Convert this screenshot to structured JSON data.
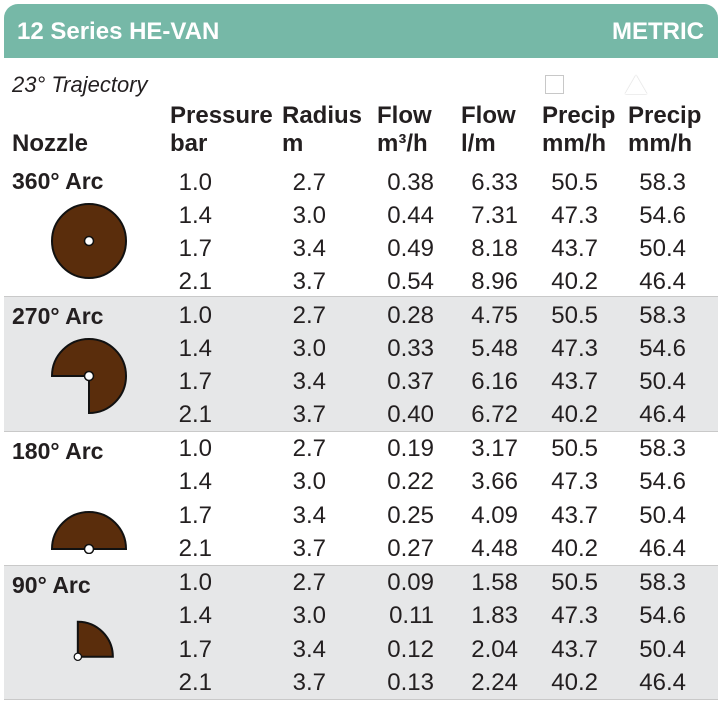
{
  "header": {
    "title": "12 Series HE-VAN",
    "units": "METRIC"
  },
  "trajectory": "23° Trajectory",
  "columns": {
    "nozzle": "Nozzle",
    "pressure": [
      "Pressure",
      "bar"
    ],
    "radius": [
      "Radius",
      "m"
    ],
    "flow_m3": [
      "Flow",
      "m³/h"
    ],
    "flow_lm": [
      "Flow",
      "l/m"
    ],
    "precip_square": [
      "Precip",
      "mm/h"
    ],
    "precip_triangle": [
      "Precip",
      "mm/h"
    ]
  },
  "legend_icons": {
    "square": "square-icon",
    "triangle": "triangle-icon"
  },
  "colors": {
    "header": "#76b8a7",
    "nozzle_fill": "#5a2d0c",
    "shade": "#e6e7e8"
  },
  "groups": [
    {
      "arc": "360° Arc",
      "degrees": 360,
      "rows": [
        {
          "pressure": "1.0",
          "radius": "2.7",
          "flow_m3": "0.38",
          "flow_lm": "6.33",
          "precip_sq": "50.5",
          "precip_tri": "58.3"
        },
        {
          "pressure": "1.4",
          "radius": "3.0",
          "flow_m3": "0.44",
          "flow_lm": "7.31",
          "precip_sq": "47.3",
          "precip_tri": "54.6"
        },
        {
          "pressure": "1.7",
          "radius": "3.4",
          "flow_m3": "0.49",
          "flow_lm": "8.18",
          "precip_sq": "43.7",
          "precip_tri": "50.4"
        },
        {
          "pressure": "2.1",
          "radius": "3.7",
          "flow_m3": "0.54",
          "flow_lm": "8.96",
          "precip_sq": "40.2",
          "precip_tri": "46.4"
        }
      ]
    },
    {
      "arc": "270° Arc",
      "degrees": 270,
      "rows": [
        {
          "pressure": "1.0",
          "radius": "2.7",
          "flow_m3": "0.28",
          "flow_lm": "4.75",
          "precip_sq": "50.5",
          "precip_tri": "58.3"
        },
        {
          "pressure": "1.4",
          "radius": "3.0",
          "flow_m3": "0.33",
          "flow_lm": "5.48",
          "precip_sq": "47.3",
          "precip_tri": "54.6"
        },
        {
          "pressure": "1.7",
          "radius": "3.4",
          "flow_m3": "0.37",
          "flow_lm": "6.16",
          "precip_sq": "43.7",
          "precip_tri": "50.4"
        },
        {
          "pressure": "2.1",
          "radius": "3.7",
          "flow_m3": "0.40",
          "flow_lm": "6.72",
          "precip_sq": "40.2",
          "precip_tri": "46.4"
        }
      ]
    },
    {
      "arc": "180° Arc",
      "degrees": 180,
      "rows": [
        {
          "pressure": "1.0",
          "radius": "2.7",
          "flow_m3": "0.19",
          "flow_lm": "3.17",
          "precip_sq": "50.5",
          "precip_tri": "58.3"
        },
        {
          "pressure": "1.4",
          "radius": "3.0",
          "flow_m3": "0.22",
          "flow_lm": "3.66",
          "precip_sq": "47.3",
          "precip_tri": "54.6"
        },
        {
          "pressure": "1.7",
          "radius": "3.4",
          "flow_m3": "0.25",
          "flow_lm": "4.09",
          "precip_sq": "43.7",
          "precip_tri": "50.4"
        },
        {
          "pressure": "2.1",
          "radius": "3.7",
          "flow_m3": "0.27",
          "flow_lm": "4.48",
          "precip_sq": "40.2",
          "precip_tri": "46.4"
        }
      ]
    },
    {
      "arc": "90° Arc",
      "degrees": 90,
      "rows": [
        {
          "pressure": "1.0",
          "radius": "2.7",
          "flow_m3": "0.09",
          "flow_lm": "1.58",
          "precip_sq": "50.5",
          "precip_tri": "58.3"
        },
        {
          "pressure": "1.4",
          "radius": "3.0",
          "flow_m3": "0.11",
          "flow_lm": "1.83",
          "precip_sq": "47.3",
          "precip_tri": "54.6"
        },
        {
          "pressure": "1.7",
          "radius": "3.4",
          "flow_m3": "0.12",
          "flow_lm": "2.04",
          "precip_sq": "43.7",
          "precip_tri": "50.4"
        },
        {
          "pressure": "2.1",
          "radius": "3.7",
          "flow_m3": "0.13",
          "flow_lm": "2.24",
          "precip_sq": "40.2",
          "precip_tri": "46.4"
        }
      ]
    }
  ]
}
